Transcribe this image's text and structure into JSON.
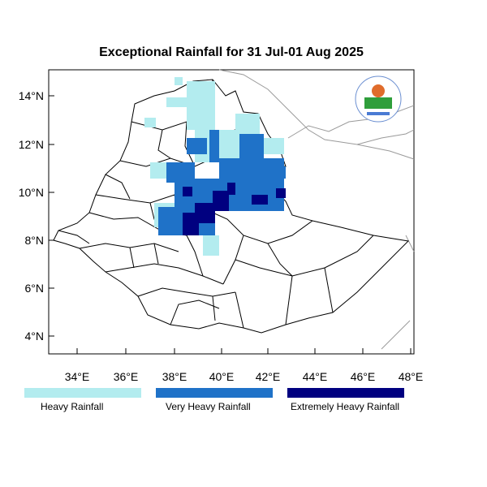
{
  "title": "Exceptional Rainfall for 31 Jul-01 Aug 2025",
  "map": {
    "lon_range": [
      32.8,
      48.2
    ],
    "lat_range": [
      3.2,
      15.2
    ],
    "lon_ticks": [
      "34°E",
      "36°E",
      "38°E",
      "40°E",
      "42°E",
      "44°E",
      "46°E",
      "48°E"
    ],
    "lat_ticks": [
      "14°N",
      "12°N",
      "10°N",
      "8°N",
      "6°N",
      "4°N"
    ]
  },
  "legend": [
    {
      "label": "Heavy Rainfall",
      "color": "#b3ecef"
    },
    {
      "label": "Very Heavy Rainfall",
      "color": "#1f72c8"
    },
    {
      "label": "Extremely Heavy Rainfall",
      "color": "#000080"
    }
  ],
  "logo": {
    "name": "meteorological-agency-logo"
  }
}
